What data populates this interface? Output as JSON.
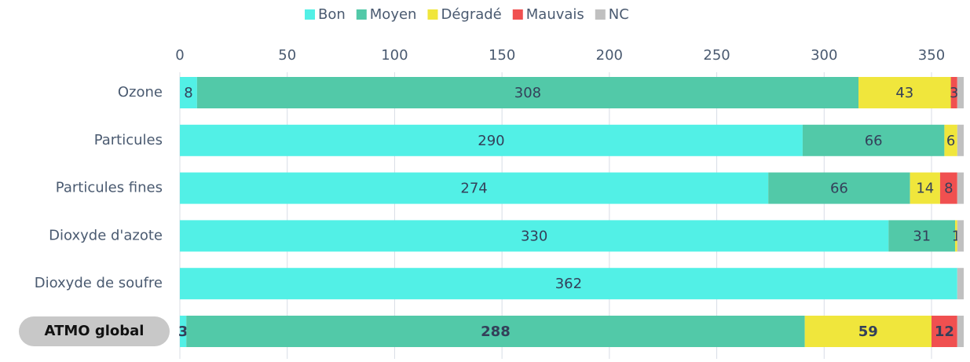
{
  "chart_data": {
    "type": "stacked-barh",
    "categories": [
      "Ozone",
      "Particules",
      "Particules fines",
      "Dioxyde d'azote",
      "Dioxyde de soufre",
      "ATMO global"
    ],
    "highlight_index": 5,
    "series": [
      {
        "name": "Bon",
        "color": "#52f0e6",
        "data_labels": true,
        "values": [
          8,
          290,
          274,
          330,
          362,
          3
        ]
      },
      {
        "name": "Moyen",
        "color": "#52c9a8",
        "data_labels": true,
        "values": [
          308,
          66,
          66,
          31,
          0,
          288
        ]
      },
      {
        "name": "Dégradé",
        "color": "#f0e63c",
        "data_labels": true,
        "values": [
          43,
          6,
          14,
          1,
          0,
          59
        ]
      },
      {
        "name": "Mauvais",
        "color": "#f05050",
        "data_labels": true,
        "values": [
          3,
          0,
          8,
          0,
          0,
          12
        ]
      },
      {
        "name": "NC",
        "color": "#c0c0c0",
        "data_labels": false,
        "values": [
          3,
          3,
          3,
          3,
          3,
          3
        ]
      }
    ],
    "xlim": [
      0,
      365
    ],
    "xticks": [
      0,
      50,
      100,
      150,
      200,
      250,
      300,
      350
    ],
    "grid": true,
    "legend": "top"
  }
}
